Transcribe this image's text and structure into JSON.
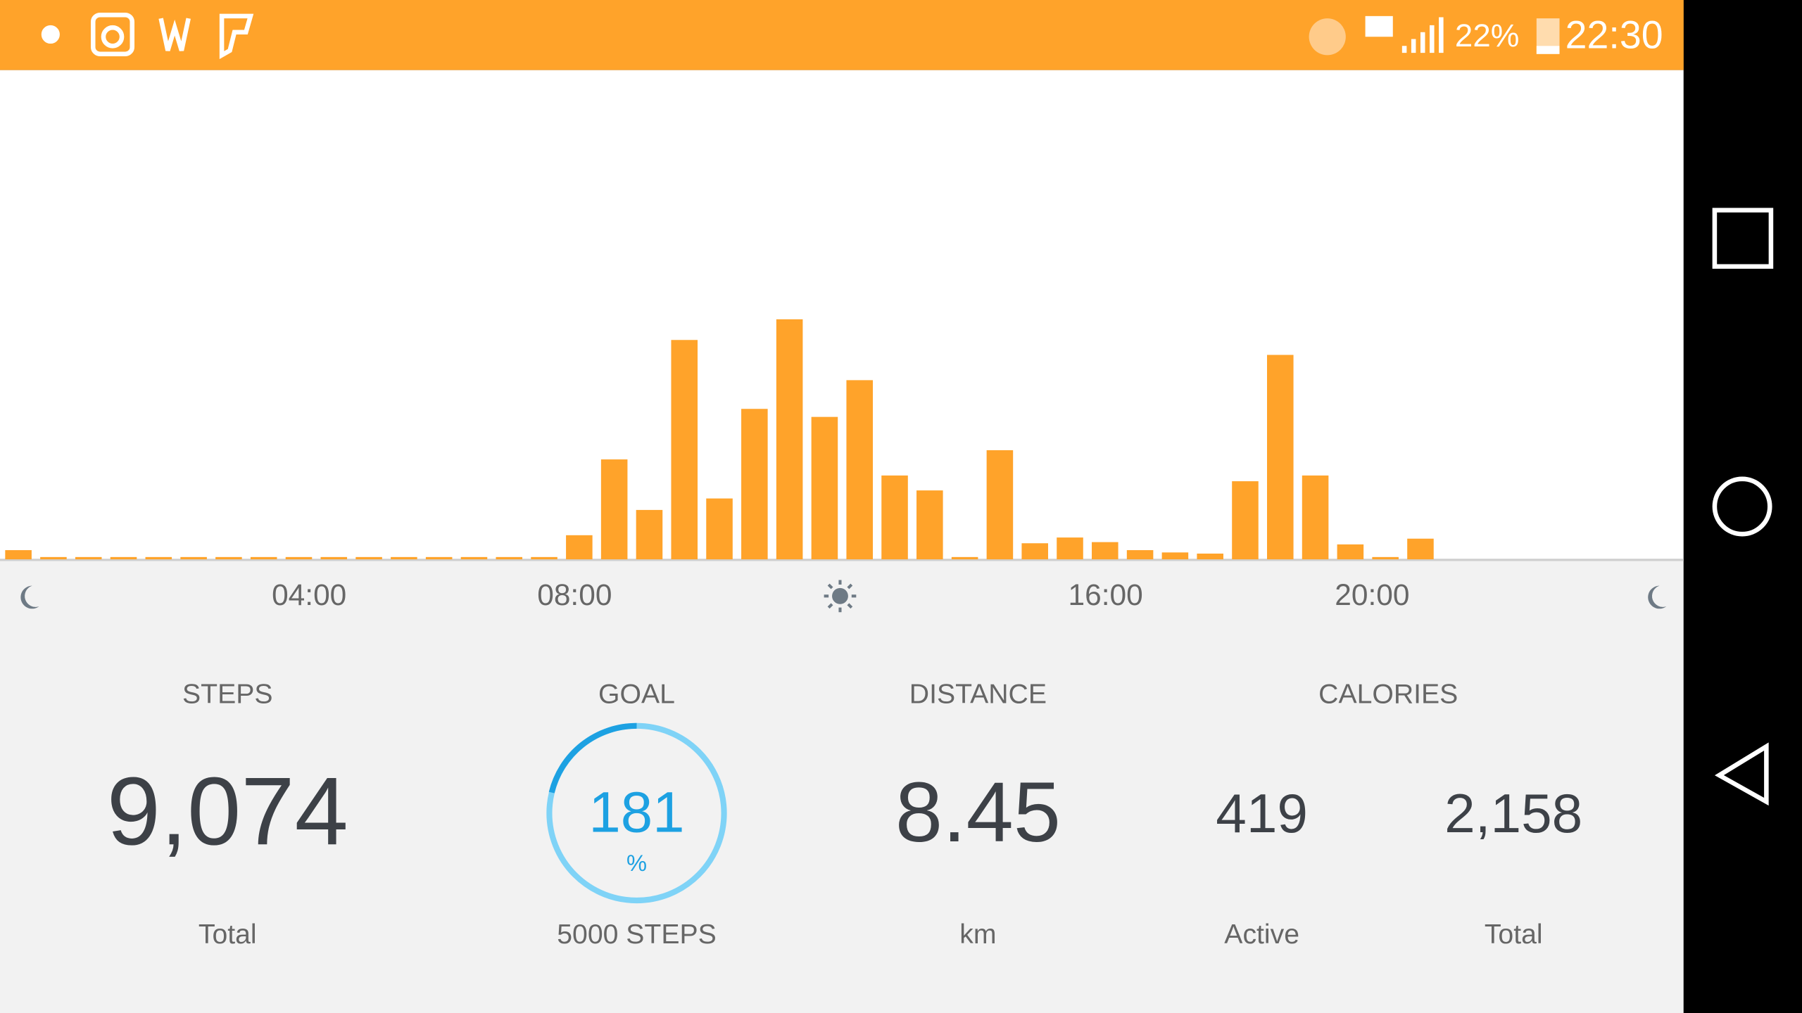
{
  "status_bar": {
    "battery": "22%",
    "time": "22:30"
  },
  "chart_data": {
    "type": "bar",
    "values": [
      8,
      2,
      2,
      2,
      2,
      2,
      2,
      2,
      2,
      2,
      2,
      2,
      2,
      2,
      2,
      2,
      21,
      87,
      43,
      191,
      53,
      131,
      209,
      124,
      156,
      73,
      60,
      2,
      95,
      14,
      19,
      15,
      8,
      6,
      5,
      68,
      178,
      73,
      13,
      2,
      18
    ],
    "color": "#ffa32a",
    "ylim": [
      0,
      426
    ]
  },
  "time_axis": [
    "04:00",
    "08:00",
    "16:00",
    "20:00"
  ],
  "stats": {
    "steps": {
      "label": "STEPS",
      "value": "9,074",
      "caption": "Total"
    },
    "goal": {
      "label": "GOAL",
      "value": "181",
      "unit": "%",
      "caption": "5000 STEPS"
    },
    "distance": {
      "label": "DISTANCE",
      "value": "8.45",
      "caption": "km"
    },
    "calories": {
      "label": "CALORIES",
      "active": "419",
      "active_caption": "Active",
      "total": "2,158",
      "total_caption": "Total"
    }
  }
}
